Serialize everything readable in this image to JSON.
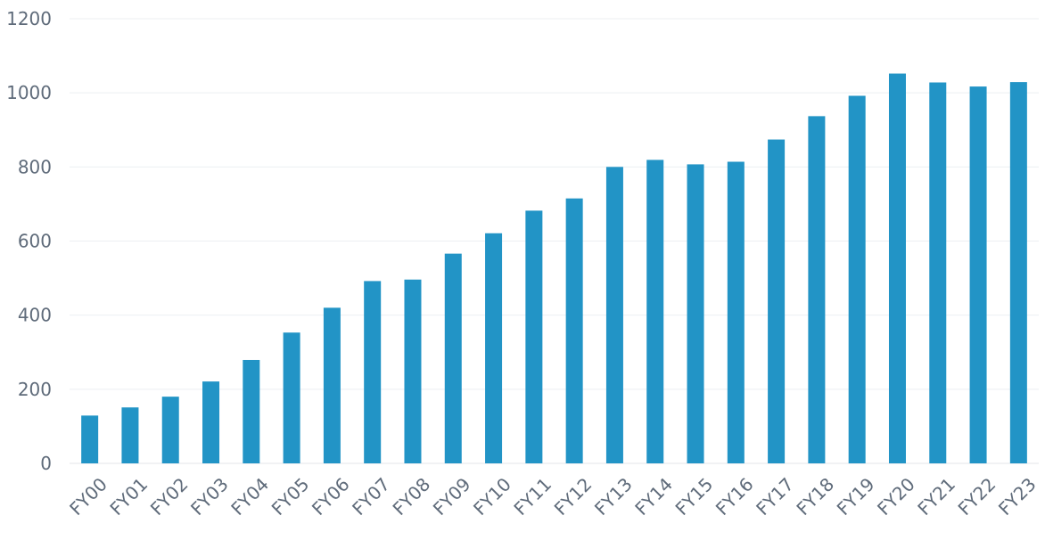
{
  "chart_data": {
    "type": "bar",
    "title": "",
    "xlabel": "",
    "ylabel": "",
    "categories": [
      "FY00",
      "FY01",
      "FY02",
      "FY03",
      "FY04",
      "FY05",
      "FY06",
      "FY07",
      "FY08",
      "FY09",
      "FY10",
      "FY11",
      "FY12",
      "FY13",
      "FY14",
      "FY15",
      "FY16",
      "FY17",
      "FY18",
      "FY19",
      "FY20",
      "FY21",
      "FY22",
      "FY23"
    ],
    "values": [
      129,
      151,
      180,
      221,
      279,
      353,
      420,
      492,
      496,
      566,
      621,
      682,
      715,
      800,
      819,
      807,
      814,
      874,
      937,
      992,
      1052,
      1028,
      1017,
      1029
    ],
    "ylim": [
      0,
      1200
    ],
    "yticks": [
      "0",
      "200",
      "400",
      "600",
      "800",
      "1000",
      "1200"
    ],
    "grid": true,
    "bar_color": "#2294c6"
  }
}
